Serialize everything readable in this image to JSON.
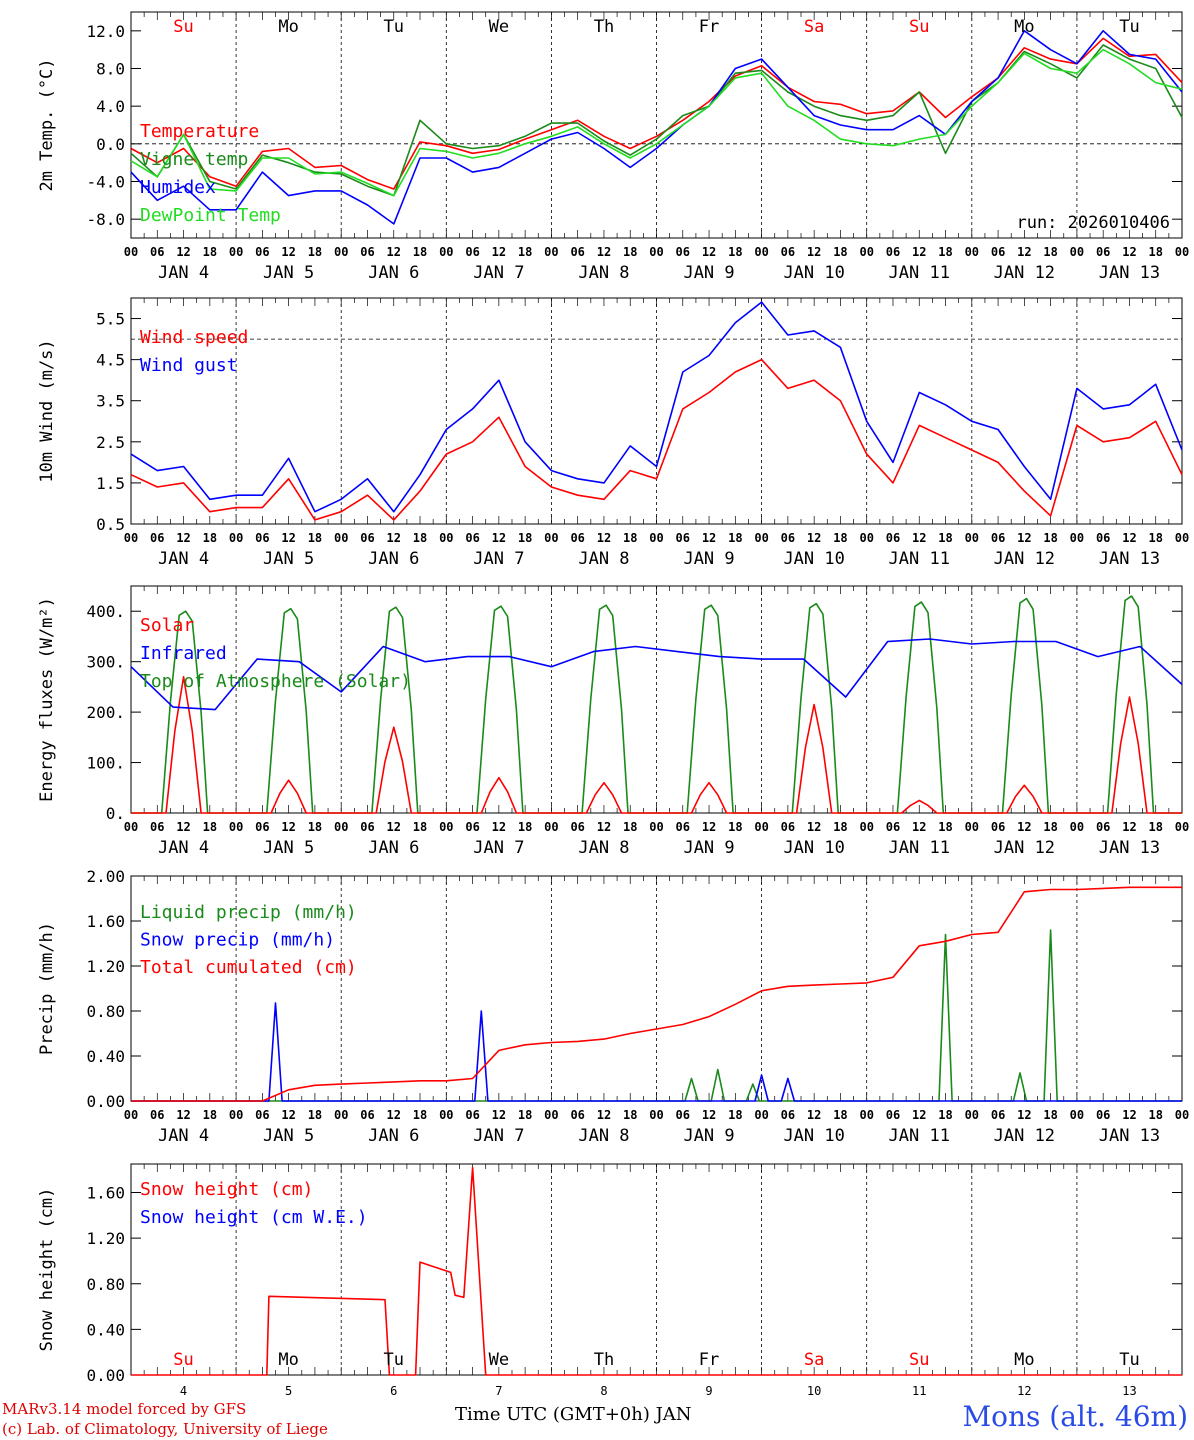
{
  "footer": {
    "credit_line1": "MARv3.14 model forced by GFS",
    "credit_line2": "(c) Lab. of Climatology, University of Liege",
    "xaxis_title": "Time UTC (GMT+0h) JAN",
    "station": "Mons (alt. 46m)"
  },
  "colors": {
    "red": "#ff0000",
    "darkgreen": "#1a8a1a",
    "blue": "#0000ff",
    "lightgreen": "#22dd22",
    "sunday": "#ff0000",
    "weekday": "#000000"
  },
  "days": {
    "weekday_labels": [
      "Su",
      "Mo",
      "Tu",
      "We",
      "Th",
      "Fr",
      "Sa",
      "Su",
      "Mo",
      "Tu"
    ],
    "weekday_colors": [
      "#ff0000",
      "#000000",
      "#000000",
      "#000000",
      "#000000",
      "#000000",
      "#ff0000",
      "#ff0000",
      "#000000",
      "#000000"
    ],
    "month_labels": [
      "JAN  4",
      "JAN  5",
      "JAN  6",
      "JAN  7",
      "JAN  8",
      "JAN  9",
      "JAN 10",
      "JAN 11",
      "JAN 12",
      "JAN 13"
    ],
    "day_numbers": [
      "4",
      "5",
      "6",
      "7",
      "8",
      "9",
      "10",
      "11",
      "12",
      "13"
    ],
    "hour_ticks": [
      "00",
      "06",
      "12",
      "18"
    ]
  },
  "chart_data": [
    {
      "type": "line",
      "title": "",
      "ylabel": "2m Temp. (°C)",
      "ylim": [
        -10,
        14
      ],
      "yticks": [
        "-8.0",
        "-4.0",
        "0.0",
        "4.0",
        "8.0",
        "12.0"
      ],
      "ytick_values": [
        -8,
        -4,
        0,
        4,
        8,
        12
      ],
      "reference_line": 0,
      "run_label": "run: 2026010406",
      "x_hours": [
        0,
        6,
        12,
        18,
        24,
        30,
        36,
        42,
        48,
        54,
        60,
        66,
        72,
        78,
        84,
        90,
        96,
        102,
        108,
        114,
        120,
        126,
        132,
        138,
        144,
        150,
        156,
        162,
        168,
        174,
        180,
        186,
        192,
        198,
        204,
        210,
        216,
        222,
        228,
        234,
        240
      ],
      "series": [
        {
          "name": "Temperature",
          "color": "#ff0000",
          "values": [
            -0.5,
            -2.0,
            -0.5,
            -3.5,
            -4.5,
            -0.8,
            -0.5,
            -2.5,
            -2.3,
            -3.8,
            -4.8,
            0.2,
            -0.2,
            -1.0,
            -0.6,
            0.5,
            1.5,
            2.5,
            0.8,
            -0.5,
            0.8,
            2.5,
            4.5,
            7.2,
            8.3,
            6.0,
            4.5,
            4.2,
            3.2,
            3.5,
            5.5,
            2.8,
            5.0,
            7.0,
            10.2,
            9.0,
            8.5,
            11.2,
            9.3,
            9.5,
            6.5
          ]
        },
        {
          "name": "Vigne temp",
          "color": "#1a8a1a",
          "values": [
            -1.0,
            -3.5,
            1.0,
            -4.0,
            -4.8,
            -1.2,
            -2.0,
            -3.0,
            -3.2,
            -4.5,
            -5.5,
            2.5,
            0.0,
            -0.5,
            -0.2,
            0.8,
            2.2,
            2.2,
            0.3,
            -1.2,
            0.5,
            3.0,
            4.0,
            7.5,
            7.8,
            5.5,
            4.0,
            3.0,
            2.5,
            3.0,
            5.5,
            -1.0,
            4.5,
            6.5,
            9.8,
            8.5,
            7.0,
            10.5,
            9.0,
            8.0,
            2.8
          ]
        },
        {
          "name": "Humidex",
          "color": "#0000ff",
          "values": [
            -3.0,
            -6.0,
            -4.5,
            -7.0,
            -7.0,
            -3.0,
            -5.5,
            -5.0,
            -5.0,
            -6.5,
            -8.5,
            -1.5,
            -1.5,
            -3.0,
            -2.5,
            -1.0,
            0.5,
            1.2,
            -0.5,
            -2.5,
            -0.5,
            2.0,
            4.0,
            8.0,
            9.0,
            6.0,
            3.0,
            2.0,
            1.5,
            1.5,
            3.0,
            1.0,
            4.5,
            7.0,
            12.0,
            10.0,
            8.5,
            12.0,
            9.5,
            9.0,
            5.5
          ]
        },
        {
          "name": "DewPoint Temp",
          "color": "#22dd22",
          "values": [
            -1.8,
            -3.5,
            1.0,
            -4.8,
            -5.0,
            -1.5,
            -1.5,
            -3.2,
            -3.0,
            -4.2,
            -5.5,
            -0.5,
            -0.8,
            -1.5,
            -1.0,
            0.0,
            0.8,
            1.8,
            0.0,
            -1.5,
            0.0,
            2.0,
            4.0,
            7.0,
            7.5,
            4.0,
            2.5,
            0.5,
            0.0,
            -0.2,
            0.5,
            1.0,
            4.0,
            6.5,
            9.6,
            8.0,
            7.5,
            10.0,
            8.5,
            6.5,
            5.8
          ]
        }
      ]
    },
    {
      "type": "line",
      "title": "",
      "ylabel": "10m Wind (m/s)",
      "ylim": [
        0.5,
        6.0
      ],
      "yticks": [
        "0.5",
        "1.5",
        "2.5",
        "3.5",
        "4.5",
        "5.5"
      ],
      "ytick_values": [
        0.5,
        1.5,
        2.5,
        3.5,
        4.5,
        5.5
      ],
      "reference_line": 5.0,
      "x_hours": [
        0,
        6,
        12,
        18,
        24,
        30,
        36,
        42,
        48,
        54,
        60,
        66,
        72,
        78,
        84,
        90,
        96,
        102,
        108,
        114,
        120,
        126,
        132,
        138,
        144,
        150,
        156,
        162,
        168,
        174,
        180,
        186,
        192,
        198,
        204,
        210,
        216,
        222,
        228,
        234,
        240
      ],
      "series": [
        {
          "name": "Wind speed",
          "color": "#ff0000",
          "values": [
            1.7,
            1.4,
            1.5,
            0.8,
            0.9,
            0.9,
            1.6,
            0.6,
            0.8,
            1.2,
            0.6,
            1.3,
            2.2,
            2.5,
            3.1,
            1.9,
            1.4,
            1.2,
            1.1,
            1.8,
            1.6,
            3.3,
            3.7,
            4.2,
            4.5,
            3.8,
            4.0,
            3.5,
            2.2,
            1.5,
            2.9,
            2.6,
            2.3,
            2.0,
            1.3,
            0.7,
            2.9,
            2.5,
            2.6,
            3.0,
            1.7
          ]
        },
        {
          "name": "Wind gust",
          "color": "#0000ff",
          "values": [
            2.2,
            1.8,
            1.9,
            1.1,
            1.2,
            1.2,
            2.1,
            0.8,
            1.1,
            1.6,
            0.8,
            1.7,
            2.8,
            3.3,
            4.0,
            2.5,
            1.8,
            1.6,
            1.5,
            2.4,
            1.9,
            4.2,
            4.6,
            5.4,
            5.9,
            5.1,
            5.2,
            4.8,
            3.0,
            2.0,
            3.7,
            3.4,
            3.0,
            2.8,
            1.9,
            1.1,
            3.8,
            3.3,
            3.4,
            3.9,
            2.3
          ]
        }
      ]
    },
    {
      "type": "line",
      "title": "",
      "ylabel": "Energy fluxes (W/m²)",
      "ylim": [
        0,
        450
      ],
      "yticks": [
        "0.",
        "100.",
        "200.",
        "300.",
        "400."
      ],
      "ytick_values": [
        0,
        100,
        200,
        300,
        400
      ],
      "daily_peaks_solar": [
        270,
        65,
        170,
        70,
        60,
        60,
        215,
        25,
        55,
        230
      ],
      "daily_peaks_toa": [
        400,
        405,
        408,
        410,
        412,
        412,
        415,
        418,
        425,
        430
      ],
      "infrared_values": [
        290,
        210,
        205,
        305,
        300,
        240,
        330,
        300,
        310,
        310,
        290,
        320,
        330,
        320,
        310,
        305,
        305,
        230,
        340,
        345,
        335,
        340,
        340,
        310,
        330,
        255
      ],
      "series": [
        {
          "name": "Solar",
          "color": "#ff0000"
        },
        {
          "name": "Infrared",
          "color": "#0000ff"
        },
        {
          "name": "Top of Atmosphere (Solar)",
          "color": "#1a8a1a"
        }
      ]
    },
    {
      "type": "line",
      "title": "",
      "ylabel": "Precip (mm/h)",
      "ylim": [
        0,
        2.0
      ],
      "yticks": [
        "0.00",
        "0.40",
        "0.80",
        "1.20",
        "1.60",
        "2.00"
      ],
      "ytick_values": [
        0,
        0.4,
        0.8,
        1.2,
        1.6,
        2.0
      ],
      "x_hours": [
        0,
        6,
        12,
        18,
        24,
        30,
        36,
        42,
        48,
        54,
        60,
        66,
        72,
        78,
        84,
        90,
        96,
        102,
        108,
        114,
        120,
        126,
        132,
        138,
        144,
        150,
        156,
        162,
        168,
        174,
        180,
        186,
        192,
        198,
        204,
        210,
        216,
        222,
        228,
        234,
        240
      ],
      "liquid_spikes": [
        {
          "h": 134,
          "v": 0.28
        },
        {
          "h": 186,
          "v": 1.48
        },
        {
          "h": 203,
          "v": 0.25
        },
        {
          "h": 210,
          "v": 1.52
        },
        {
          "h": 128,
          "v": 0.2
        },
        {
          "h": 142,
          "v": 0.15
        }
      ],
      "snow_spikes": [
        {
          "h": 33,
          "v": 0.87
        },
        {
          "h": 80,
          "v": 0.8
        },
        {
          "h": 144,
          "v": 0.23
        },
        {
          "h": 150,
          "v": 0.2
        }
      ],
      "series": [
        {
          "name": "Liquid precip (mm/h)",
          "color": "#1a8a1a"
        },
        {
          "name": "Snow precip (mm/h)",
          "color": "#0000ff"
        },
        {
          "name": "Total cumulated (cm)",
          "color": "#ff0000",
          "values": [
            0,
            0,
            0,
            0,
            0,
            0,
            0.1,
            0.14,
            0.15,
            0.16,
            0.17,
            0.18,
            0.18,
            0.2,
            0.45,
            0.5,
            0.52,
            0.53,
            0.55,
            0.6,
            0.64,
            0.68,
            0.75,
            0.86,
            0.98,
            1.02,
            1.03,
            1.04,
            1.05,
            1.1,
            1.38,
            1.42,
            1.48,
            1.5,
            1.86,
            1.88,
            1.88,
            1.89,
            1.9,
            1.9,
            1.9
          ]
        }
      ]
    },
    {
      "type": "line",
      "title": "",
      "ylabel": "Snow height (cm)",
      "ylim": [
        0,
        1.85
      ],
      "yticks": [
        "0.00",
        "0.40",
        "0.80",
        "1.20",
        "1.60"
      ],
      "ytick_values": [
        0,
        0.4,
        0.8,
        1.2,
        1.6
      ],
      "series": [
        {
          "name": "Snow height (cm)",
          "color": "#ff0000",
          "points": [
            [
              0,
              0
            ],
            [
              31,
              0
            ],
            [
              31.5,
              0.69
            ],
            [
              58,
              0.66
            ],
            [
              59,
              0
            ],
            [
              65,
              0
            ],
            [
              66,
              0.99
            ],
            [
              73,
              0.9
            ],
            [
              74,
              0.7
            ],
            [
              76,
              0.68
            ],
            [
              78,
              1.82
            ],
            [
              81,
              0
            ],
            [
              240,
              0
            ]
          ]
        },
        {
          "name": "Snow height (cm W.E.)",
          "color": "#0000ff",
          "points": []
        }
      ]
    }
  ]
}
